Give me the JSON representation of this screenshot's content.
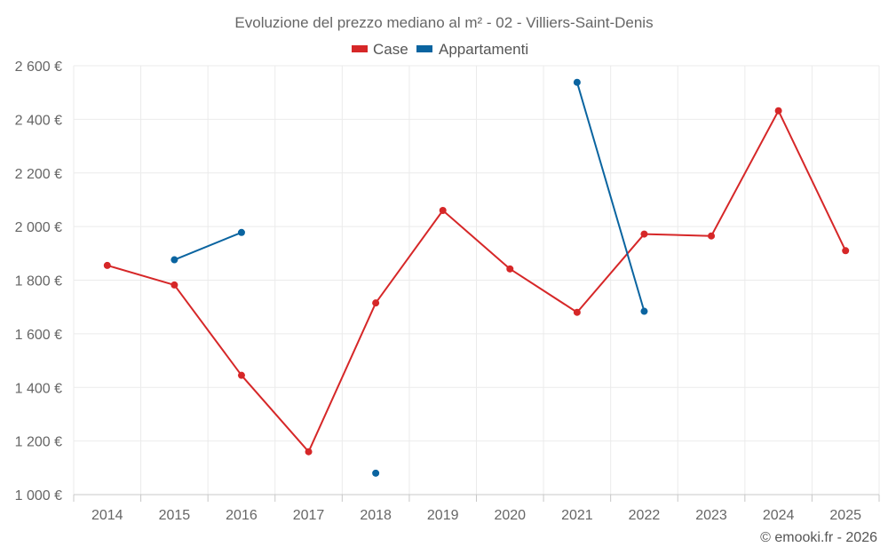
{
  "chart_data": {
    "type": "line",
    "title": "Evoluzione del prezzo mediano al m² - 02 - Villiers-Saint-Denis",
    "categories": [
      "2014",
      "2015",
      "2016",
      "2017",
      "2018",
      "2019",
      "2020",
      "2021",
      "2022",
      "2023",
      "2024",
      "2025"
    ],
    "ylim": [
      1000,
      2600
    ],
    "yticks": [
      1000,
      1200,
      1400,
      1600,
      1800,
      2000,
      2200,
      2400,
      2600
    ],
    "ytick_labels": [
      "1 000 €",
      "1 200 €",
      "1 400 €",
      "1 600 €",
      "1 800 €",
      "2 000 €",
      "2 200 €",
      "2 400 €",
      "2 600 €"
    ],
    "grid": true,
    "legend_position": "top-center",
    "series": [
      {
        "name": "Case",
        "color": "#d62728",
        "values": [
          1855,
          1782,
          1445,
          1160,
          1715,
          2060,
          1842,
          1680,
          1972,
          1965,
          2432,
          1910
        ]
      },
      {
        "name": "Appartamenti",
        "color": "#0a64a0",
        "values": [
          null,
          1876,
          1978,
          null,
          1080,
          null,
          null,
          2538,
          1684,
          null,
          null,
          null
        ]
      }
    ]
  },
  "credit": "© emooki.fr - 2026"
}
